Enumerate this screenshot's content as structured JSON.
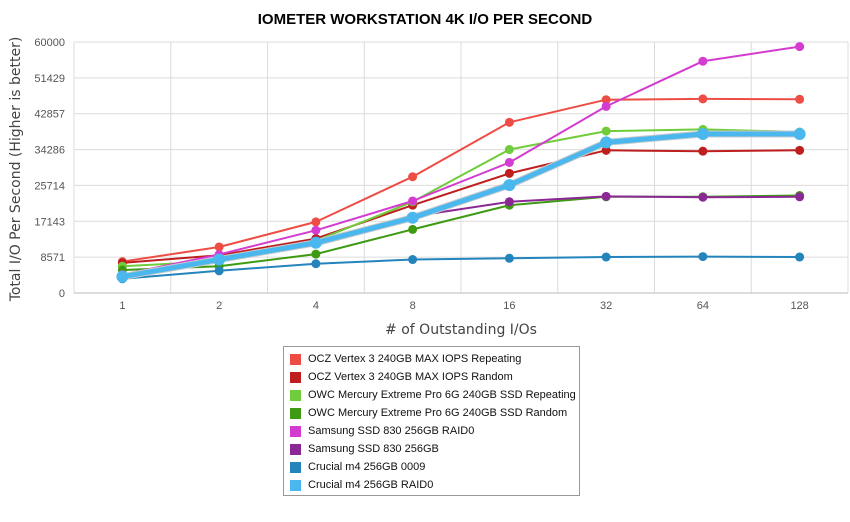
{
  "chart_data": {
    "type": "line",
    "title": "IOMETER WORKSTATION 4K I/O PER SECOND",
    "xlabel": "# of Outstanding I/Os",
    "ylabel": "Total I/O Per Second (Higher is better)",
    "categories": [
      "1",
      "2",
      "4",
      "8",
      "16",
      "32",
      "64",
      "128"
    ],
    "y_ticks": [
      "0",
      "8571",
      "17143",
      "25714",
      "34286",
      "42857",
      "51429",
      "60000"
    ],
    "ylim": [
      0,
      60000
    ],
    "grid": true,
    "legend_position": "bottom",
    "series": [
      {
        "name": "OCZ Vertex 3 240GB MAX IOPS Repeating",
        "color": "#ee4d45",
        "values": [
          7500,
          11000,
          17000,
          27800,
          40800,
          46200,
          46400,
          46300
        ]
      },
      {
        "name": "OCZ Vertex 3 240GB MAX IOPS Random",
        "color": "#be1e1e",
        "values": [
          7200,
          9000,
          13000,
          21000,
          28600,
          34100,
          33900,
          34100
        ]
      },
      {
        "name": "OWC Mercury Extreme Pro 6G 240GB SSD Repeating",
        "color": "#70cc3a",
        "values": [
          6400,
          7600,
          12500,
          21800,
          34300,
          38700,
          39100,
          38500
        ]
      },
      {
        "name": "OWC Mercury Extreme Pro 6G 240GB SSD Random",
        "color": "#3e9a13",
        "values": [
          5500,
          6400,
          9300,
          15200,
          21000,
          23000,
          23000,
          23300
        ]
      },
      {
        "name": "Samsung SSD 830 256GB RAID0",
        "color": "#d43bd0",
        "values": [
          4400,
          9200,
          15000,
          22000,
          31200,
          44600,
          55400,
          58900
        ]
      },
      {
        "name": "Samsung SSD 830 256GB",
        "color": "#8c2896",
        "values": [
          4200,
          8300,
          12500,
          18300,
          21800,
          23100,
          22900,
          23000
        ]
      },
      {
        "name": "Crucial m4 256GB 0009",
        "color": "#2484bc",
        "values": [
          3400,
          5300,
          7000,
          8000,
          8300,
          8600,
          8700,
          8600
        ]
      },
      {
        "name": "Crucial m4 256GB RAID0",
        "color": "#4ab8ee",
        "values": [
          3900,
          8000,
          12000,
          18000,
          25800,
          36000,
          38000,
          38000
        ]
      }
    ]
  }
}
